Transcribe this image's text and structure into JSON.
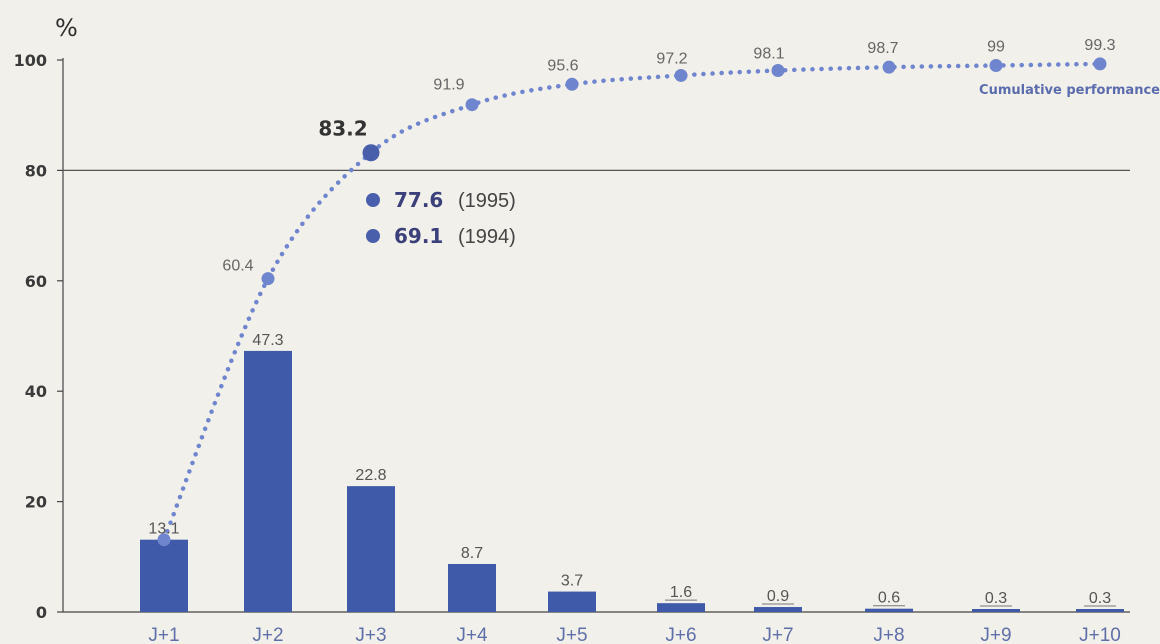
{
  "chart_data": {
    "type": "bar",
    "ylabel": "%",
    "ylim": [
      0,
      100
    ],
    "yticks": [
      0,
      20,
      40,
      60,
      80,
      100
    ],
    "reference_line": 80,
    "categories": [
      "J+1",
      "J+2",
      "J+3",
      "J+4",
      "J+5",
      "J+6",
      "J+7",
      "J+8",
      "J+9",
      "J+10"
    ],
    "series": [
      {
        "type": "bar",
        "values": [
          13.1,
          47.3,
          22.8,
          8.7,
          3.7,
          1.6,
          0.9,
          0.6,
          0.3,
          0.3
        ],
        "labels": [
          "13.1",
          "47.3",
          "22.8",
          "8.7",
          "3.7",
          "1.6",
          "0.9",
          "0.6",
          "0.3",
          "0.3"
        ]
      },
      {
        "type": "line",
        "style": "dotted",
        "name": "Cumulative performance",
        "values": [
          13.1,
          60.4,
          83.2,
          91.9,
          95.6,
          97.2,
          98.1,
          98.7,
          99,
          99.3
        ],
        "labels": [
          "",
          "60.4",
          "83.2",
          "91.9",
          "95.6",
          "97.2",
          "98.1",
          "98.7",
          "99",
          "99.3"
        ]
      }
    ],
    "annotations": [
      {
        "value": "77.6",
        "year": "(1995)"
      },
      {
        "value": "69.1",
        "year": "(1994)"
      }
    ],
    "colors": {
      "bar": "#3f5aa8",
      "line": "#6f86cf",
      "highlight_point": "#4a5fab",
      "background": "#f2f0ea"
    }
  }
}
